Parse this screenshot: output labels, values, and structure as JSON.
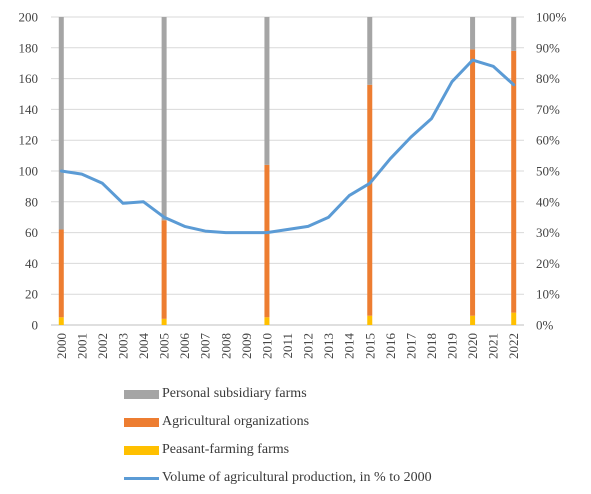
{
  "chart_data": {
    "type": "bar+line",
    "x": [
      "2000",
      "2001",
      "2002",
      "2003",
      "2004",
      "2005",
      "2006",
      "2007",
      "2008",
      "2009",
      "2010",
      "2011",
      "2012",
      "2013",
      "2014",
      "2015",
      "2016",
      "2017",
      "2018",
      "2019",
      "2020",
      "2021",
      "2022"
    ],
    "left_axis": {
      "min": 0,
      "max": 200,
      "step": 20,
      "ticks": [
        "0",
        "20",
        "40",
        "60",
        "80",
        "100",
        "120",
        "140",
        "160",
        "180",
        "200"
      ]
    },
    "right_axis": {
      "min": 0,
      "max": 100,
      "step": 10,
      "ticks": [
        "0%",
        "10%",
        "20%",
        "30%",
        "40%",
        "50%",
        "60%",
        "70%",
        "80%",
        "90%",
        "100%"
      ]
    },
    "bars": {
      "x": [
        "2000",
        "2005",
        "2010",
        "2015",
        "2020",
        "2022"
      ],
      "series": [
        {
          "name": "Peasant-farming farms",
          "color": "#ffc000",
          "values": [
            5,
            4,
            5,
            6,
            6,
            8
          ]
        },
        {
          "name": "Agricultural organizations",
          "color": "#ed7d31",
          "values": [
            57,
            64,
            99,
            150,
            173,
            170
          ]
        },
        {
          "name": "Personal subsidiary farms",
          "color": "#a5a5a5",
          "values": [
            138,
            132,
            96,
            44,
            21,
            22
          ]
        }
      ]
    },
    "line": {
      "name": "Volume of agricultural production, in % to 2000",
      "color": "#5b9bd5",
      "values_percent": [
        50,
        49,
        46,
        39.5,
        40,
        35,
        32,
        30.5,
        30,
        30,
        30,
        31,
        32,
        35,
        42,
        46,
        54,
        61,
        67,
        79,
        86,
        84,
        78
      ]
    },
    "legend": [
      {
        "label": "Personal subsidiary farms",
        "color": "#a5a5a5",
        "kind": "bar"
      },
      {
        "label": "Agricultural organizations",
        "color": "#ed7d31",
        "kind": "bar"
      },
      {
        "label": "Peasant-farming farms",
        "color": "#ffc000",
        "kind": "bar"
      },
      {
        "label": "Volume of agricultural production, in % to 2000",
        "color": "#5b9bd5",
        "kind": "line"
      }
    ],
    "grid": true,
    "legend_position": "bottom"
  }
}
